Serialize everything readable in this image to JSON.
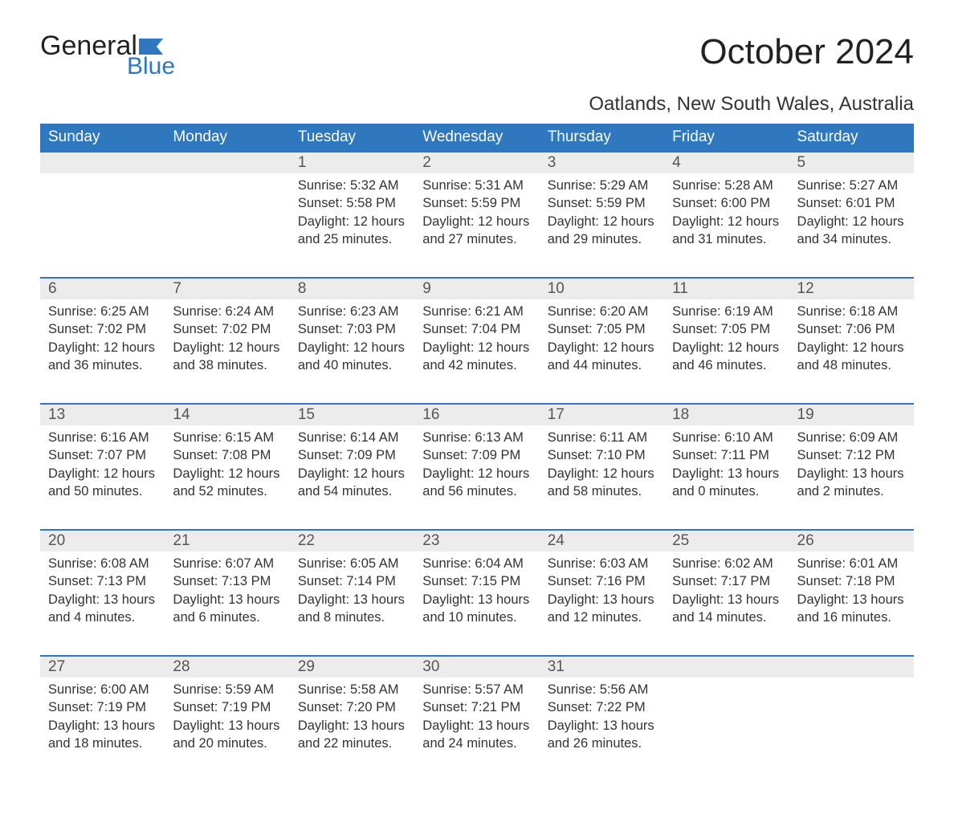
{
  "logo": {
    "word1": "General",
    "word2": "Blue"
  },
  "title": "October 2024",
  "location": "Oatlands, New South Wales, Australia",
  "colors": {
    "header_bg": "#2f78bf",
    "header_text": "#ffffff",
    "daynum_bg": "#ececec",
    "border_top": "#2f78bf",
    "body_text": "#333333",
    "background": "#ffffff"
  },
  "day_headers": [
    "Sunday",
    "Monday",
    "Tuesday",
    "Wednesday",
    "Thursday",
    "Friday",
    "Saturday"
  ],
  "weeks": [
    [
      null,
      null,
      {
        "n": "1",
        "sunrise": "5:32 AM",
        "sunset": "5:58 PM",
        "daylight": "12 hours and 25 minutes."
      },
      {
        "n": "2",
        "sunrise": "5:31 AM",
        "sunset": "5:59 PM",
        "daylight": "12 hours and 27 minutes."
      },
      {
        "n": "3",
        "sunrise": "5:29 AM",
        "sunset": "5:59 PM",
        "daylight": "12 hours and 29 minutes."
      },
      {
        "n": "4",
        "sunrise": "5:28 AM",
        "sunset": "6:00 PM",
        "daylight": "12 hours and 31 minutes."
      },
      {
        "n": "5",
        "sunrise": "5:27 AM",
        "sunset": "6:01 PM",
        "daylight": "12 hours and 34 minutes."
      }
    ],
    [
      {
        "n": "6",
        "sunrise": "6:25 AM",
        "sunset": "7:02 PM",
        "daylight": "12 hours and 36 minutes."
      },
      {
        "n": "7",
        "sunrise": "6:24 AM",
        "sunset": "7:02 PM",
        "daylight": "12 hours and 38 minutes."
      },
      {
        "n": "8",
        "sunrise": "6:23 AM",
        "sunset": "7:03 PM",
        "daylight": "12 hours and 40 minutes."
      },
      {
        "n": "9",
        "sunrise": "6:21 AM",
        "sunset": "7:04 PM",
        "daylight": "12 hours and 42 minutes."
      },
      {
        "n": "10",
        "sunrise": "6:20 AM",
        "sunset": "7:05 PM",
        "daylight": "12 hours and 44 minutes."
      },
      {
        "n": "11",
        "sunrise": "6:19 AM",
        "sunset": "7:05 PM",
        "daylight": "12 hours and 46 minutes."
      },
      {
        "n": "12",
        "sunrise": "6:18 AM",
        "sunset": "7:06 PM",
        "daylight": "12 hours and 48 minutes."
      }
    ],
    [
      {
        "n": "13",
        "sunrise": "6:16 AM",
        "sunset": "7:07 PM",
        "daylight": "12 hours and 50 minutes."
      },
      {
        "n": "14",
        "sunrise": "6:15 AM",
        "sunset": "7:08 PM",
        "daylight": "12 hours and 52 minutes."
      },
      {
        "n": "15",
        "sunrise": "6:14 AM",
        "sunset": "7:09 PM",
        "daylight": "12 hours and 54 minutes."
      },
      {
        "n": "16",
        "sunrise": "6:13 AM",
        "sunset": "7:09 PM",
        "daylight": "12 hours and 56 minutes."
      },
      {
        "n": "17",
        "sunrise": "6:11 AM",
        "sunset": "7:10 PM",
        "daylight": "12 hours and 58 minutes."
      },
      {
        "n": "18",
        "sunrise": "6:10 AM",
        "sunset": "7:11 PM",
        "daylight": "13 hours and 0 minutes."
      },
      {
        "n": "19",
        "sunrise": "6:09 AM",
        "sunset": "7:12 PM",
        "daylight": "13 hours and 2 minutes."
      }
    ],
    [
      {
        "n": "20",
        "sunrise": "6:08 AM",
        "sunset": "7:13 PM",
        "daylight": "13 hours and 4 minutes."
      },
      {
        "n": "21",
        "sunrise": "6:07 AM",
        "sunset": "7:13 PM",
        "daylight": "13 hours and 6 minutes."
      },
      {
        "n": "22",
        "sunrise": "6:05 AM",
        "sunset": "7:14 PM",
        "daylight": "13 hours and 8 minutes."
      },
      {
        "n": "23",
        "sunrise": "6:04 AM",
        "sunset": "7:15 PM",
        "daylight": "13 hours and 10 minutes."
      },
      {
        "n": "24",
        "sunrise": "6:03 AM",
        "sunset": "7:16 PM",
        "daylight": "13 hours and 12 minutes."
      },
      {
        "n": "25",
        "sunrise": "6:02 AM",
        "sunset": "7:17 PM",
        "daylight": "13 hours and 14 minutes."
      },
      {
        "n": "26",
        "sunrise": "6:01 AM",
        "sunset": "7:18 PM",
        "daylight": "13 hours and 16 minutes."
      }
    ],
    [
      {
        "n": "27",
        "sunrise": "6:00 AM",
        "sunset": "7:19 PM",
        "daylight": "13 hours and 18 minutes."
      },
      {
        "n": "28",
        "sunrise": "5:59 AM",
        "sunset": "7:19 PM",
        "daylight": "13 hours and 20 minutes."
      },
      {
        "n": "29",
        "sunrise": "5:58 AM",
        "sunset": "7:20 PM",
        "daylight": "13 hours and 22 minutes."
      },
      {
        "n": "30",
        "sunrise": "5:57 AM",
        "sunset": "7:21 PM",
        "daylight": "13 hours and 24 minutes."
      },
      {
        "n": "31",
        "sunrise": "5:56 AM",
        "sunset": "7:22 PM",
        "daylight": "13 hours and 26 minutes."
      },
      null,
      null
    ]
  ],
  "labels": {
    "sunrise": "Sunrise: ",
    "sunset": "Sunset: ",
    "daylight": "Daylight: "
  }
}
